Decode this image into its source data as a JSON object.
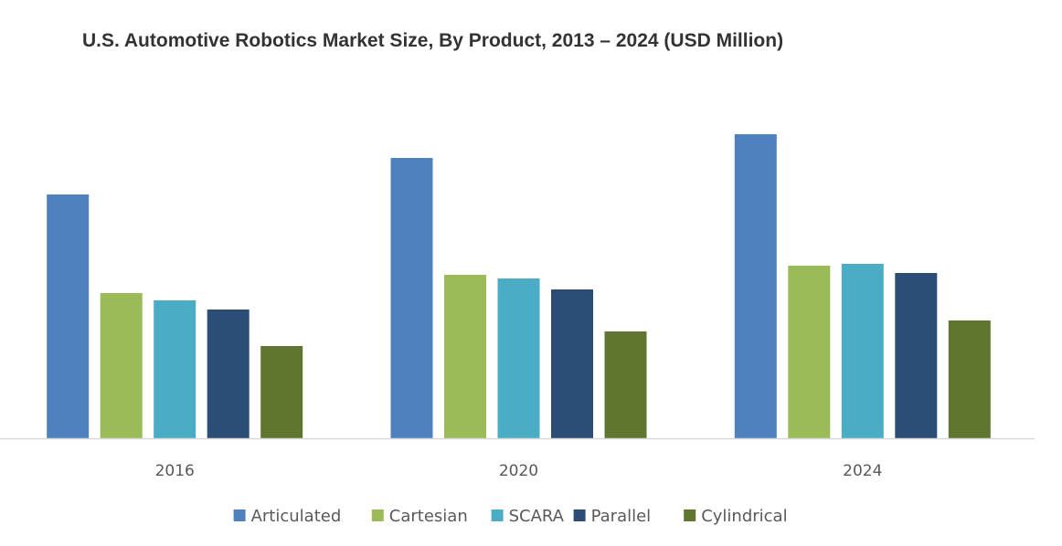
{
  "chart_data": {
    "type": "bar",
    "title": "U.S. Automotive Robotics Market Size, By Product, 2013 – 2024 (USD Million)",
    "xlabel": "",
    "ylabel": "",
    "categories": [
      "2016",
      "2020",
      "2024"
    ],
    "series": [
      {
        "name": "Articulated",
        "color": "#4f81bd",
        "values": [
          267,
          307,
          333
        ]
      },
      {
        "name": "Cartesian",
        "color": "#9bbb59",
        "values": [
          159,
          179,
          189
        ]
      },
      {
        "name": "SCARA",
        "color": "#4bacc6",
        "values": [
          151,
          175,
          191
        ]
      },
      {
        "name": "Parallel",
        "color": "#2c4d75",
        "values": [
          141,
          163,
          181
        ]
      },
      {
        "name": "Cylindrical",
        "color": "#5f7530",
        "values": [
          101,
          117,
          129
        ]
      }
    ],
    "ylim": [
      0,
      360
    ],
    "grid": false,
    "y_axis_visible": false,
    "legend_position": "bottom"
  }
}
